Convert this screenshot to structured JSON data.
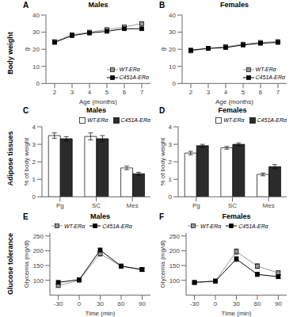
{
  "annotations": [
    "Body weight",
    "Adipose tissues",
    "Glucose tolerance"
  ],
  "chart_data": [
    {
      "type": "line",
      "title": "Males",
      "annotations": [
        "A"
      ],
      "x_label": "Age (months)",
      "y_label": "g",
      "x": [
        2,
        3,
        4,
        5,
        6,
        7
      ],
      "xlim": [
        1.5,
        7.5
      ],
      "xticks": [
        2,
        3,
        4,
        5,
        6,
        7
      ],
      "ylim": [
        0,
        40
      ],
      "yticks": [
        0,
        10,
        20,
        30,
        40
      ],
      "marker": "square",
      "legend": "lower right",
      "grid": false,
      "series": [
        {
          "name": "WT-ERα",
          "color": "#999999",
          "values": [
            24.5,
            28.5,
            30.0,
            31.5,
            33.0,
            35.0
          ],
          "errors": [
            0.5,
            0.6,
            0.6,
            0.7,
            0.7,
            0.8
          ]
        },
        {
          "name": "C451A-ERα",
          "color": "#000000",
          "values": [
            24.0,
            28.0,
            29.5,
            30.5,
            32.0,
            32.0
          ],
          "errors": [
            0.5,
            0.6,
            0.6,
            0.7,
            0.7,
            0.8
          ]
        }
      ]
    },
    {
      "type": "line",
      "title": "Females",
      "annotations": [
        "B"
      ],
      "x_label": "Age (months)",
      "y_label": "g",
      "x": [
        2,
        3,
        4,
        5,
        6,
        7
      ],
      "xlim": [
        1.5,
        7.5
      ],
      "xticks": [
        2,
        3,
        4,
        5,
        6,
        7
      ],
      "ylim": [
        0,
        40
      ],
      "yticks": [
        0,
        10,
        20,
        30,
        40
      ],
      "marker": "square",
      "legend": "lower right",
      "grid": false,
      "series": [
        {
          "name": "WT-ERα",
          "color": "#999999",
          "values": [
            19.0,
            20.5,
            21.5,
            23.0,
            24.0,
            24.5
          ],
          "errors": [
            0.4,
            0.4,
            0.5,
            0.5,
            0.5,
            0.5
          ]
        },
        {
          "name": "C451A-ERα",
          "color": "#000000",
          "values": [
            19.5,
            20.5,
            21.0,
            22.5,
            23.5,
            24.0
          ],
          "errors": [
            0.4,
            0.4,
            0.5,
            0.5,
            0.5,
            0.5
          ]
        }
      ]
    },
    {
      "type": "bar",
      "title": "Males",
      "annotations": [
        "C"
      ],
      "y_label": "% of body weight",
      "categories": [
        "Pg",
        "SC",
        "Mes"
      ],
      "ylim": [
        0,
        4
      ],
      "yticks": [
        0,
        1,
        2,
        3,
        4
      ],
      "legend": "upper right",
      "grid": false,
      "series": [
        {
          "name": "WT-ERα",
          "color": "#ffffff",
          "values": [
            3.5,
            3.45,
            1.65
          ],
          "errors": [
            0.15,
            0.2,
            0.1
          ]
        },
        {
          "name": "C451A-ERα",
          "color": "#2b2b2b",
          "values": [
            3.32,
            3.32,
            1.32
          ],
          "errors": [
            0.12,
            0.18,
            0.08
          ]
        }
      ]
    },
    {
      "type": "bar",
      "title": "Females",
      "annotations": [
        "D"
      ],
      "y_label": "% of body weight",
      "categories": [
        "Pg",
        "SC",
        "Mes"
      ],
      "ylim": [
        0,
        4
      ],
      "yticks": [
        0,
        1,
        2,
        3,
        4
      ],
      "legend": "upper right",
      "grid": false,
      "series": [
        {
          "name": "WT-ERα",
          "color": "#ffffff",
          "values": [
            2.5,
            2.8,
            1.28
          ],
          "errors": [
            0.1,
            0.08,
            0.08
          ]
        },
        {
          "name": "C451A-ERα",
          "color": "#2b2b2b",
          "values": [
            2.92,
            3.0,
            1.72
          ],
          "errors": [
            0.08,
            0.08,
            0.12
          ]
        }
      ]
    },
    {
      "type": "line",
      "title": "Males",
      "annotations": [
        "E"
      ],
      "x_label": "Time (min)",
      "y_label": "Glycemia (mg/dl)",
      "x": [
        -30,
        0,
        30,
        60,
        90
      ],
      "xlim": [
        -42,
        102
      ],
      "xticks": [
        -30,
        0,
        30,
        60,
        90
      ],
      "ylim": [
        50,
        260
      ],
      "yticks": [
        100,
        150,
        200,
        250
      ],
      "marker": "square",
      "legend": "upper left",
      "grid": false,
      "series": [
        {
          "name": "WT-ERα",
          "color": "#999999",
          "values": [
            82,
            100,
            190,
            148,
            137
          ],
          "errors": [
            4,
            3,
            8,
            7,
            6
          ]
        },
        {
          "name": "C451A-ERα",
          "color": "#000000",
          "values": [
            93,
            102,
            202,
            148,
            136
          ],
          "errors": [
            4,
            3,
            7,
            6,
            6
          ]
        }
      ]
    },
    {
      "type": "line",
      "title": "Females",
      "annotations": [
        "F"
      ],
      "x_label": "Time (min)",
      "y_label": "Glycemia (mg/dl)",
      "x": [
        -30,
        0,
        30,
        60,
        90
      ],
      "xlim": [
        -42,
        102
      ],
      "xticks": [
        -30,
        0,
        30,
        60,
        90
      ],
      "ylim": [
        50,
        260
      ],
      "yticks": [
        100,
        150,
        200,
        250
      ],
      "marker": "square",
      "legend": "upper left",
      "grid": false,
      "series": [
        {
          "name": "WT-ERα",
          "color": "#999999",
          "values": [
            92,
            98,
            197,
            148,
            125
          ],
          "errors": [
            4,
            4,
            9,
            8,
            7
          ]
        },
        {
          "name": "C451A-ERα",
          "color": "#000000",
          "values": [
            93,
            97,
            172,
            120,
            112
          ],
          "errors": [
            4,
            4,
            8,
            7,
            6
          ]
        }
      ]
    }
  ]
}
